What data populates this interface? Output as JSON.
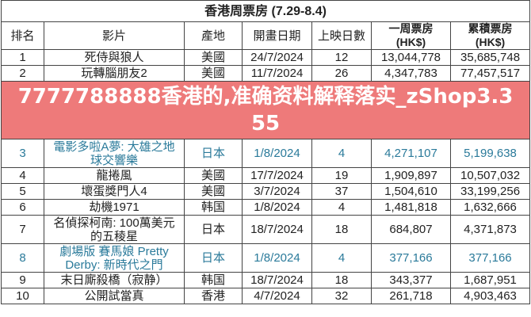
{
  "title": "香港周票房 (7.29-8.4)",
  "headers": [
    "排名",
    "影片",
    "產地",
    "開畫日期",
    "上映日數",
    "一周票房\n(HK$)",
    "累積票房\n(HK$)"
  ],
  "rows": [
    {
      "rank": "1",
      "film": "死侍與狼人",
      "origin": "美國",
      "date": "24/7/2024",
      "days": "12",
      "week": "13,044,778",
      "total": "35,685,748"
    },
    {
      "rank": "2",
      "film": "玩轉腦朋友2",
      "origin": "美國",
      "date": "11/7/2024",
      "days": "26",
      "week": "4,347,783",
      "total": "77,457,517"
    },
    {
      "rank": "3",
      "film": "電影多啦A夢: 大雄之地球交響樂",
      "origin": "日本",
      "date": "1/8/2024",
      "days": "4",
      "week": "4,271,107",
      "total": "5,199,638"
    },
    {
      "rank": "4",
      "film": "龍捲風",
      "origin": "美國",
      "date": "17/7/2024",
      "days": "19",
      "week": "1,909,897",
      "total": "10,507,032"
    },
    {
      "rank": "5",
      "film": "壞蛋獎門人4",
      "origin": "美國",
      "date": "3/7/2024",
      "days": "37",
      "week": "1,504,610",
      "total": "33,199,256"
    },
    {
      "rank": "6",
      "film": "劫機1971",
      "origin": "韩国",
      "date": "1/8/2024",
      "days": "4",
      "week": "1,481,818",
      "total": "1,632,666"
    },
    {
      "rank": "7",
      "film": "名偵探柯南: 100萬美元的五稜星",
      "origin": "日本",
      "date": "18/7/2024",
      "days": "18",
      "week": "684,807",
      "total": "4,371,873"
    },
    {
      "rank": "8",
      "film": "劇場版 賽馬娘 Pretty Derby: 新時代之門",
      "origin": "日本",
      "date": "1/8/2024",
      "days": "4",
      "week": "377,166",
      "total": "377,166"
    },
    {
      "rank": "9",
      "film": "末日廝殺橋（寂静）",
      "origin": "韩国",
      "date": "18/7/2024",
      "days": "18",
      "week": "343,377",
      "total": "1,687,951"
    },
    {
      "rank": "10",
      "film": "公開試當真",
      "origin": "香港",
      "date": "4/7/2024",
      "days": "32",
      "week": "261,718",
      "total": "4,903,463"
    }
  ],
  "banner": "7777788888香港的,准确资料解释落实_zShop3.355",
  "colors": {
    "new_release": "#2a7a9a",
    "banner": "#ee5858"
  }
}
